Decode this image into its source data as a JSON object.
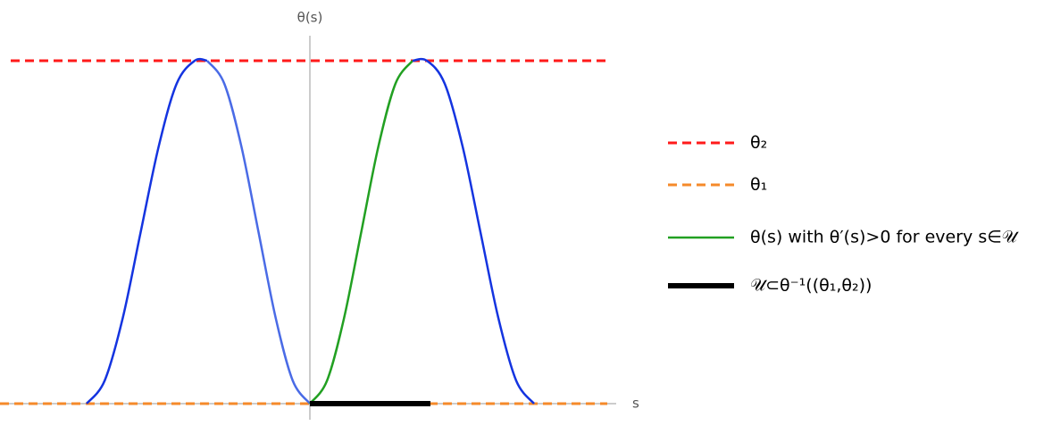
{
  "chart_data": {
    "type": "line",
    "x_label": "s",
    "y_label": "θ(s)",
    "xlim": [
      -3.47,
      3.43
    ],
    "ylim": [
      -0.047,
      1.073
    ],
    "lines": [
      {
        "color": "#ff1a1a",
        "style": "dashed",
        "x": [
          -3.35,
          3.33
        ],
        "y": [
          1,
          1
        ]
      },
      {
        "color": "#f58a2a",
        "style": "dashed",
        "x": [
          -3.47,
          3.33
        ],
        "y": [
          0,
          0
        ]
      },
      {
        "color": "#1434e0",
        "style": "solid",
        "x": [
          -2.5,
          -2.298,
          -2.095,
          -1.895,
          -1.693,
          -1.492,
          -1.29,
          -1.15
        ],
        "y": [
          0,
          0.067,
          0.25,
          0.5,
          0.75,
          0.933,
          1,
          1
        ]
      },
      {
        "color": "#4a6be6",
        "style": "solid",
        "x": [
          -1.15,
          -0.958,
          -0.767,
          -0.575,
          -0.383,
          -0.192,
          0
        ],
        "y": [
          1,
          0.933,
          0.75,
          0.5,
          0.25,
          0.067,
          0
        ]
      },
      {
        "color": "#22a022",
        "style": "solid",
        "x": [
          0,
          0.192,
          0.383,
          0.575,
          0.767,
          0.958,
          1.15
        ],
        "y": [
          0,
          0.067,
          0.25,
          0.5,
          0.75,
          0.933,
          1
        ]
      },
      {
        "color": "#1434e0",
        "style": "solid",
        "x": [
          1.15,
          1.31,
          1.51,
          1.71,
          1.91,
          2.11,
          2.31,
          2.51
        ],
        "y": [
          1,
          1,
          0.933,
          0.75,
          0.5,
          0.25,
          0.067,
          0
        ]
      },
      {
        "color": "#000000",
        "style": "thick",
        "x": [
          0,
          1.35
        ],
        "y": [
          0,
          0
        ]
      }
    ],
    "legend": [
      {
        "label": "θ₂",
        "line": 0
      },
      {
        "label": "θ₁",
        "line": 1
      },
      {
        "label": "θ(s) with θ′(s)>0 for every s∈𝒰",
        "line": 4
      },
      {
        "label": "𝒰⊂θ⁻¹((θ₁,θ₂))",
        "line": 6
      }
    ]
  }
}
